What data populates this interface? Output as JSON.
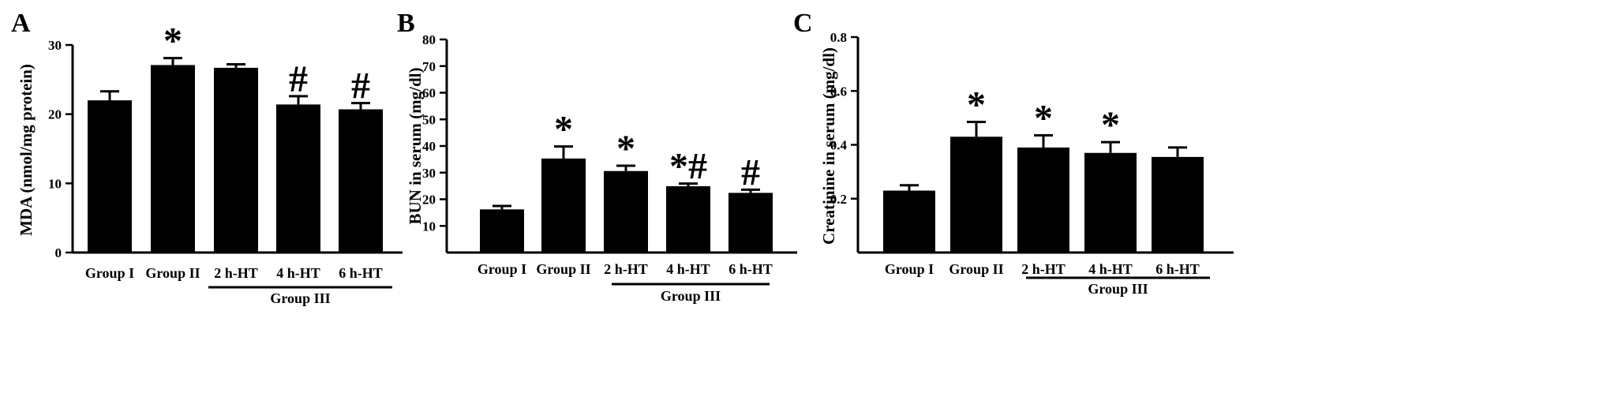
{
  "chart_data": [
    {
      "panel": "A",
      "type": "bar",
      "ylabel": "MDA (nmol/mg protein)",
      "ylim": [
        0,
        30
      ],
      "yticks": [
        0,
        10,
        20,
        30
      ],
      "categories": [
        "Group I",
        "Group II",
        "2 h-HT",
        "4 h-HT",
        "6 h-HT"
      ],
      "values": [
        22.0,
        27.1,
        26.7,
        21.4,
        20.7
      ],
      "errors": [
        1.3,
        1.0,
        0.5,
        1.2,
        0.9
      ],
      "annotations": [
        "",
        "*",
        "",
        "#",
        "#"
      ],
      "group_label": "Group III",
      "group_members": [
        "2 h-HT",
        "4 h-HT",
        "6 h-HT"
      ]
    },
    {
      "panel": "B",
      "type": "bar",
      "ylabel": "BUN in serum (mg/dl)",
      "ylim": [
        0,
        80
      ],
      "yticks": [
        10,
        20,
        30,
        40,
        50,
        60,
        70,
        80
      ],
      "categories": [
        "Group I",
        "Group II",
        "2 h-HT",
        "4 h-HT",
        "6 h-HT"
      ],
      "values": [
        16.2,
        35.3,
        30.6,
        24.9,
        22.4
      ],
      "errors": [
        1.3,
        4.5,
        2.0,
        1.0,
        1.2
      ],
      "annotations": [
        "",
        "*",
        "*",
        "*#",
        "#"
      ],
      "group_label": "Group III",
      "group_members": [
        "2 h-HT",
        "4 h-HT",
        "6 h-HT"
      ]
    },
    {
      "panel": "C",
      "type": "bar",
      "ylabel": "Creatinine in serum (mg/dl)",
      "ylim": [
        0,
        0.8
      ],
      "yticks": [
        0.2,
        0.4,
        0.6,
        0.8
      ],
      "categories": [
        "Group I",
        "Group II",
        "2 h-HT",
        "4 h-HT",
        "6 h-HT"
      ],
      "values": [
        0.23,
        0.43,
        0.39,
        0.37,
        0.355
      ],
      "errors": [
        0.02,
        0.055,
        0.045,
        0.04,
        0.035
      ],
      "annotations": [
        "",
        "*",
        "*",
        "*",
        ""
      ],
      "group_label": "Group III",
      "group_members": [
        "2 h-HT",
        "4 h-HT",
        "6 h-HT"
      ]
    }
  ]
}
